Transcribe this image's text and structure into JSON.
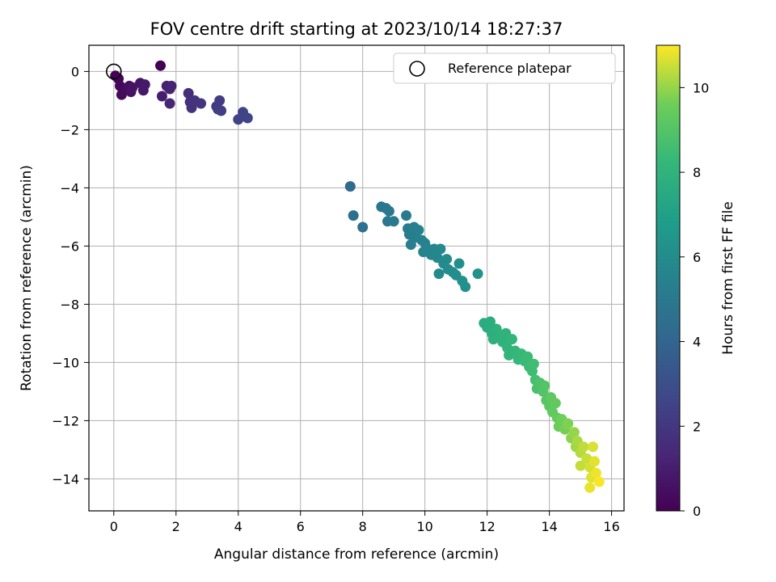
{
  "chart_data": {
    "type": "scatter",
    "title": "FOV centre drift starting at 2023/10/14 18:27:37",
    "xlabel": "Angular distance from reference (arcmin)",
    "ylabel": "Rotation from reference (arcmin)",
    "xlim": [
      -0.8,
      16.4
    ],
    "ylim": [
      -15.1,
      0.9
    ],
    "xticks": [
      "0",
      "2",
      "4",
      "6",
      "8",
      "10",
      "12",
      "14",
      "16"
    ],
    "yticks": [
      "0",
      "−2",
      "−4",
      "−6",
      "−8",
      "−10",
      "−12",
      "−14"
    ],
    "grid": true,
    "legend": {
      "label": "Reference platepar",
      "position": "top-right"
    },
    "reference_point": {
      "x": 0,
      "y": 0
    },
    "colorbar": {
      "label": "Hours from first FF file",
      "range": [
        0,
        11
      ],
      "ticks": [
        "0",
        "2",
        "4",
        "6",
        "8",
        "10"
      ],
      "colormap": "viridis"
    },
    "points": [
      {
        "x": 0.05,
        "y": -0.15,
        "t": 0.0
      },
      {
        "x": 0.15,
        "y": -0.25,
        "t": 0.1
      },
      {
        "x": 0.2,
        "y": -0.5,
        "t": 0.2
      },
      {
        "x": 0.25,
        "y": -0.8,
        "t": 0.3
      },
      {
        "x": 0.4,
        "y": -0.6,
        "t": 0.4
      },
      {
        "x": 0.5,
        "y": -0.5,
        "t": 0.5
      },
      {
        "x": 0.55,
        "y": -0.7,
        "t": 0.6
      },
      {
        "x": 0.6,
        "y": -0.55,
        "t": 0.65
      },
      {
        "x": 0.85,
        "y": -0.4,
        "t": 0.7
      },
      {
        "x": 0.95,
        "y": -0.65,
        "t": 0.8
      },
      {
        "x": 1.0,
        "y": -0.45,
        "t": 0.85
      },
      {
        "x": 1.5,
        "y": 0.2,
        "t": 0.05
      },
      {
        "x": 1.55,
        "y": -0.85,
        "t": 1.0
      },
      {
        "x": 1.7,
        "y": -0.5,
        "t": 1.1
      },
      {
        "x": 1.8,
        "y": -0.6,
        "t": 1.15
      },
      {
        "x": 1.85,
        "y": -0.5,
        "t": 1.2
      },
      {
        "x": 1.8,
        "y": -1.1,
        "t": 1.3
      },
      {
        "x": 2.4,
        "y": -0.75,
        "t": 1.6
      },
      {
        "x": 2.45,
        "y": -1.05,
        "t": 1.7
      },
      {
        "x": 2.5,
        "y": -1.25,
        "t": 1.8
      },
      {
        "x": 2.6,
        "y": -1.0,
        "t": 1.85
      },
      {
        "x": 2.8,
        "y": -1.1,
        "t": 1.9
      },
      {
        "x": 3.3,
        "y": -1.2,
        "t": 2.1
      },
      {
        "x": 3.35,
        "y": -1.3,
        "t": 2.2
      },
      {
        "x": 3.4,
        "y": -1.0,
        "t": 2.25
      },
      {
        "x": 3.45,
        "y": -1.35,
        "t": 2.3
      },
      {
        "x": 4.0,
        "y": -1.65,
        "t": 2.5
      },
      {
        "x": 4.15,
        "y": -1.4,
        "t": 2.55
      },
      {
        "x": 4.3,
        "y": -1.6,
        "t": 2.6
      },
      {
        "x": 7.6,
        "y": -3.95,
        "t": 4.3
      },
      {
        "x": 7.7,
        "y": -4.95,
        "t": 4.45
      },
      {
        "x": 8.0,
        "y": -5.35,
        "t": 4.6
      },
      {
        "x": 8.6,
        "y": -4.65,
        "t": 4.8
      },
      {
        "x": 8.75,
        "y": -4.7,
        "t": 4.85
      },
      {
        "x": 8.85,
        "y": -4.8,
        "t": 4.9
      },
      {
        "x": 8.8,
        "y": -5.15,
        "t": 4.95
      },
      {
        "x": 9.0,
        "y": -5.15,
        "t": 5.0
      },
      {
        "x": 9.4,
        "y": -4.95,
        "t": 5.1
      },
      {
        "x": 9.45,
        "y": -5.4,
        "t": 5.15
      },
      {
        "x": 9.5,
        "y": -5.6,
        "t": 5.2
      },
      {
        "x": 9.55,
        "y": -5.95,
        "t": 5.25
      },
      {
        "x": 9.65,
        "y": -5.35,
        "t": 5.3
      },
      {
        "x": 9.7,
        "y": -5.7,
        "t": 5.35
      },
      {
        "x": 9.8,
        "y": -5.45,
        "t": 5.4
      },
      {
        "x": 9.9,
        "y": -5.8,
        "t": 5.45
      },
      {
        "x": 10.0,
        "y": -5.9,
        "t": 5.5
      },
      {
        "x": 9.95,
        "y": -6.2,
        "t": 5.55
      },
      {
        "x": 10.1,
        "y": -6.1,
        "t": 5.6
      },
      {
        "x": 10.2,
        "y": -6.3,
        "t": 5.65
      },
      {
        "x": 10.3,
        "y": -6.1,
        "t": 5.7
      },
      {
        "x": 10.4,
        "y": -6.4,
        "t": 5.75
      },
      {
        "x": 10.5,
        "y": -6.1,
        "t": 5.8
      },
      {
        "x": 10.45,
        "y": -6.95,
        "t": 5.85
      },
      {
        "x": 10.6,
        "y": -6.6,
        "t": 5.9
      },
      {
        "x": 10.7,
        "y": -6.45,
        "t": 5.95
      },
      {
        "x": 10.75,
        "y": -6.8,
        "t": 6.0
      },
      {
        "x": 10.9,
        "y": -6.9,
        "t": 6.05
      },
      {
        "x": 11.0,
        "y": -7.0,
        "t": 6.1
      },
      {
        "x": 11.1,
        "y": -6.6,
        "t": 6.15
      },
      {
        "x": 11.2,
        "y": -7.2,
        "t": 6.2
      },
      {
        "x": 11.3,
        "y": -7.4,
        "t": 6.25
      },
      {
        "x": 11.7,
        "y": -6.95,
        "t": 6.3
      },
      {
        "x": 11.9,
        "y": -8.65,
        "t": 7.6
      },
      {
        "x": 12.0,
        "y": -8.8,
        "t": 7.65
      },
      {
        "x": 12.1,
        "y": -8.6,
        "t": 7.7
      },
      {
        "x": 12.15,
        "y": -9.0,
        "t": 7.75
      },
      {
        "x": 12.2,
        "y": -9.2,
        "t": 7.8
      },
      {
        "x": 12.3,
        "y": -8.85,
        "t": 7.85
      },
      {
        "x": 12.4,
        "y": -9.1,
        "t": 7.9
      },
      {
        "x": 12.5,
        "y": -9.3,
        "t": 7.95
      },
      {
        "x": 12.6,
        "y": -9.0,
        "t": 8.0
      },
      {
        "x": 12.65,
        "y": -9.5,
        "t": 8.05
      },
      {
        "x": 12.7,
        "y": -9.75,
        "t": 8.1
      },
      {
        "x": 12.8,
        "y": -9.2,
        "t": 8.15
      },
      {
        "x": 12.9,
        "y": -9.6,
        "t": 8.2
      },
      {
        "x": 13.0,
        "y": -9.9,
        "t": 8.25
      },
      {
        "x": 13.1,
        "y": -9.7,
        "t": 8.3
      },
      {
        "x": 13.2,
        "y": -9.95,
        "t": 8.35
      },
      {
        "x": 13.3,
        "y": -9.8,
        "t": 8.4
      },
      {
        "x": 13.35,
        "y": -10.15,
        "t": 8.45
      },
      {
        "x": 13.45,
        "y": -10.3,
        "t": 8.5
      },
      {
        "x": 13.5,
        "y": -10.05,
        "t": 8.55
      },
      {
        "x": 13.55,
        "y": -10.6,
        "t": 8.65
      },
      {
        "x": 13.6,
        "y": -10.9,
        "t": 8.75
      },
      {
        "x": 13.7,
        "y": -10.7,
        "t": 8.85
      },
      {
        "x": 13.8,
        "y": -11.0,
        "t": 8.95
      },
      {
        "x": 13.85,
        "y": -10.8,
        "t": 9.0
      },
      {
        "x": 13.9,
        "y": -11.3,
        "t": 9.1
      },
      {
        "x": 14.0,
        "y": -11.5,
        "t": 9.2
      },
      {
        "x": 14.05,
        "y": -11.2,
        "t": 9.25
      },
      {
        "x": 14.1,
        "y": -11.7,
        "t": 9.3
      },
      {
        "x": 14.2,
        "y": -11.4,
        "t": 9.35
      },
      {
        "x": 14.25,
        "y": -11.9,
        "t": 9.4
      },
      {
        "x": 14.3,
        "y": -12.2,
        "t": 9.5
      },
      {
        "x": 14.4,
        "y": -11.95,
        "t": 9.6
      },
      {
        "x": 14.5,
        "y": -12.3,
        "t": 9.7
      },
      {
        "x": 14.6,
        "y": -12.1,
        "t": 9.8
      },
      {
        "x": 14.7,
        "y": -12.6,
        "t": 9.9
      },
      {
        "x": 14.8,
        "y": -12.4,
        "t": 10.0
      },
      {
        "x": 14.85,
        "y": -12.9,
        "t": 10.1
      },
      {
        "x": 14.9,
        "y": -12.7,
        "t": 10.2
      },
      {
        "x": 15.0,
        "y": -13.1,
        "t": 10.3
      },
      {
        "x": 15.1,
        "y": -12.9,
        "t": 10.4
      },
      {
        "x": 15.0,
        "y": -13.55,
        "t": 10.45
      },
      {
        "x": 15.2,
        "y": -13.3,
        "t": 10.5
      },
      {
        "x": 15.3,
        "y": -13.6,
        "t": 10.6
      },
      {
        "x": 15.4,
        "y": -12.9,
        "t": 10.65
      },
      {
        "x": 15.35,
        "y": -13.95,
        "t": 10.7
      },
      {
        "x": 15.45,
        "y": -13.4,
        "t": 10.75
      },
      {
        "x": 15.3,
        "y": -14.3,
        "t": 10.8
      },
      {
        "x": 15.5,
        "y": -13.8,
        "t": 10.85
      },
      {
        "x": 15.6,
        "y": -14.1,
        "t": 10.95
      }
    ]
  }
}
